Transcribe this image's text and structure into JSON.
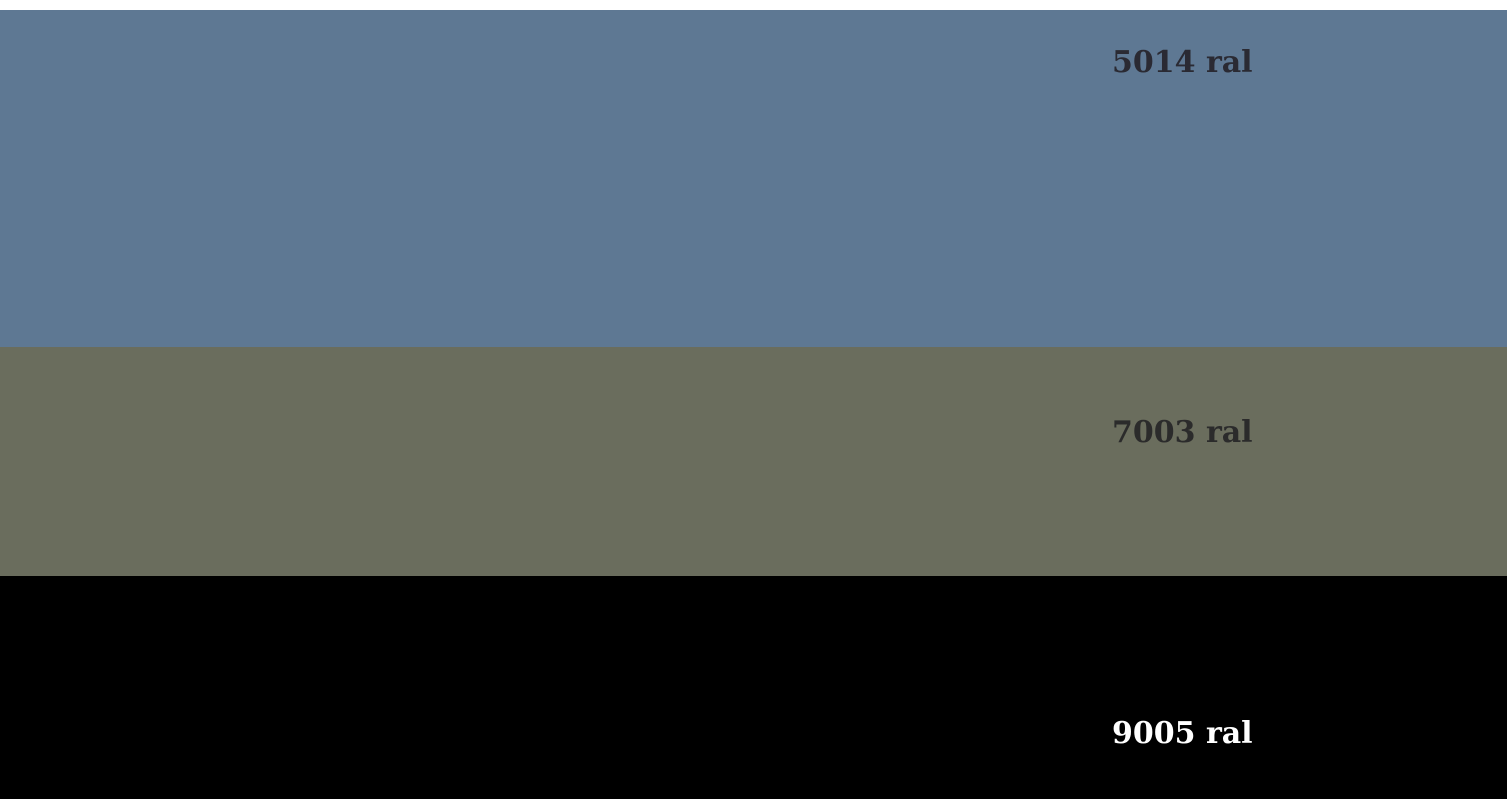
{
  "swatches": [
    {
      "label": "5014 ral",
      "background": "#5e7893",
      "text_color": "#2a2a33"
    },
    {
      "label": "7003 ral",
      "background": "#6a6d5d",
      "text_color": "#2b2b2b"
    },
    {
      "label": "9005 ral",
      "background": "#000000",
      "text_color": "#ffffff"
    }
  ]
}
